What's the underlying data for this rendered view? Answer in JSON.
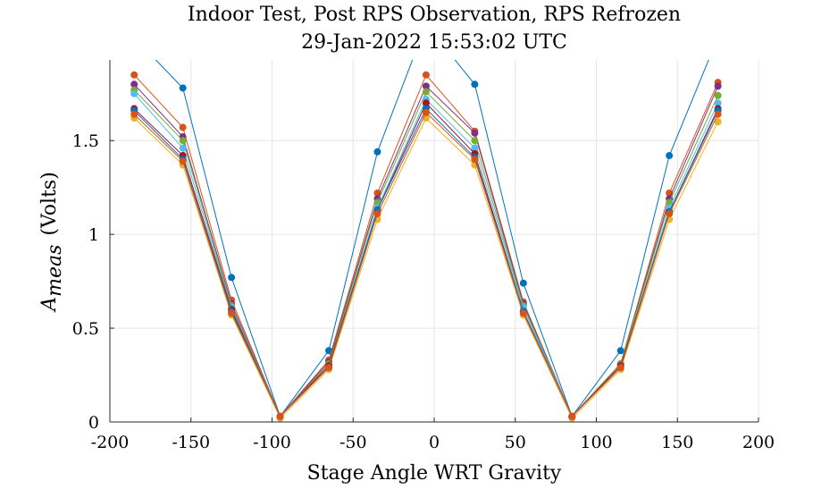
{
  "chart_data": {
    "type": "line",
    "title": "Indoor Test, Post RPS Observation, RPS Refrozen",
    "subtitle": "29-Jan-2022 15:53:02 UTC",
    "xlabel": "Stage Angle WRT Gravity",
    "ylabel": {
      "symbol": "A",
      "subscript": "meas",
      "unit": "(Volts)"
    },
    "xlim": [
      -200,
      200
    ],
    "ylim": [
      0,
      1.93
    ],
    "xticks": [
      -200,
      -150,
      -100,
      -50,
      0,
      50,
      100,
      150,
      200
    ],
    "yticks": [
      0,
      0.5,
      1,
      1.5
    ],
    "xtick_labels": [
      "-200",
      "-150",
      "-100",
      "-50",
      "0",
      "50",
      "100",
      "150",
      "200"
    ],
    "ytick_labels": [
      "0",
      "0.5",
      "1",
      "1.5"
    ],
    "grid": true,
    "x": [
      -185,
      -155,
      -125,
      -95,
      -65,
      -35,
      -5,
      25,
      55,
      85,
      115,
      145,
      175
    ],
    "series": [
      {
        "color": "#0072BD",
        "values": [
          2.05,
          1.78,
          0.77,
          0.03,
          0.38,
          1.44,
          2.12,
          1.8,
          0.74,
          0.03,
          0.38,
          1.42,
          2.05
        ]
      },
      {
        "color": "#D95319",
        "values": [
          1.85,
          1.57,
          0.65,
          0.03,
          0.33,
          1.22,
          1.85,
          1.55,
          0.64,
          0.03,
          0.31,
          1.22,
          1.81
        ]
      },
      {
        "color": "#EDB120",
        "values": [
          1.62,
          1.37,
          0.57,
          0.02,
          0.28,
          1.08,
          1.62,
          1.37,
          0.57,
          0.02,
          0.28,
          1.08,
          1.6
        ]
      },
      {
        "color": "#7E2F8E",
        "values": [
          1.8,
          1.52,
          0.63,
          0.03,
          0.32,
          1.19,
          1.79,
          1.54,
          0.63,
          0.03,
          0.31,
          1.19,
          1.79
        ]
      },
      {
        "color": "#77AC30",
        "values": [
          1.77,
          1.5,
          0.62,
          0.03,
          0.31,
          1.17,
          1.76,
          1.5,
          0.62,
          0.03,
          0.31,
          1.17,
          1.74
        ]
      },
      {
        "color": "#4DBEEE",
        "values": [
          1.75,
          1.46,
          0.61,
          0.03,
          0.3,
          1.14,
          1.72,
          1.46,
          0.61,
          0.03,
          0.3,
          1.14,
          1.7
        ]
      },
      {
        "color": "#A2142F",
        "values": [
          1.67,
          1.42,
          0.6,
          0.03,
          0.3,
          1.13,
          1.7,
          1.43,
          0.59,
          0.03,
          0.3,
          1.12,
          1.67
        ]
      },
      {
        "color": "#0072BD",
        "values": [
          1.66,
          1.4,
          0.59,
          0.03,
          0.29,
          1.13,
          1.67,
          1.41,
          0.59,
          0.03,
          0.29,
          1.12,
          1.66
        ]
      },
      {
        "color": "#D95319",
        "values": [
          1.64,
          1.39,
          0.58,
          0.03,
          0.29,
          1.11,
          1.65,
          1.4,
          0.58,
          0.03,
          0.29,
          1.11,
          1.64
        ]
      }
    ]
  }
}
